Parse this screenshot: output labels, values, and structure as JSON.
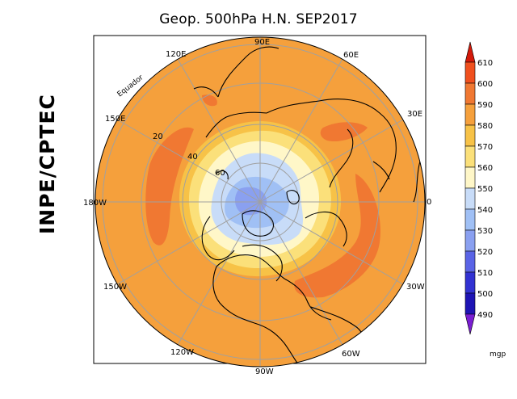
{
  "title": "Geop. 500hPa H.N. SEP2017",
  "institution": "INPE/CPTEC",
  "map_labels": {
    "lon_90e": "90E",
    "lon_60e": "60E",
    "lon_30e": "30E",
    "lon_0": "0",
    "lon_30w": "30W",
    "lon_60w": "60W",
    "lon_90w": "90W",
    "lon_120w": "120W",
    "lon_150w": "150W",
    "lon_180w": "180W",
    "lon_150e": "150E",
    "lon_120e": "120E",
    "lat_20": "20",
    "lat_40": "40",
    "lat_60": "60",
    "equator": "Equador"
  },
  "colorbar": {
    "unit": "mgp",
    "levels": [
      "610",
      "600",
      "590",
      "580",
      "570",
      "560",
      "550",
      "540",
      "530",
      "520",
      "510",
      "500",
      "490"
    ],
    "colors": [
      "#d41a0a",
      "#f0501e",
      "#f07832",
      "#f5a03c",
      "#f7c247",
      "#fbe07a",
      "#fff7c8",
      "#c8dcf8",
      "#a0c0f5",
      "#8aa0f0",
      "#5a64e6",
      "#3232d2",
      "#1e14b4",
      "#7a1ed2"
    ]
  },
  "field_colors": {
    "band_580_590": "#f5a03c",
    "band_590_600": "#f07832",
    "band_570_580": "#f7c247",
    "band_560_570": "#fbe07a",
    "band_550_560": "#fff7c8",
    "band_540_550": "#c8dcf8",
    "band_530_540": "#a0c0f5",
    "band_520_530": "#8aa0f0",
    "coast": "#000000",
    "grid": "#a0a0a0"
  }
}
